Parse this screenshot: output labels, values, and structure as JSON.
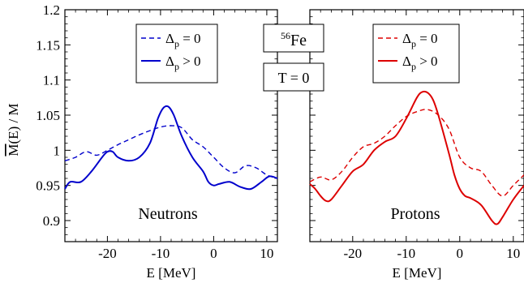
{
  "figure": {
    "y_axis_label_bar": "M",
    "y_axis_label_rest": "(E) / M",
    "center_box_top_sup": "56",
    "center_box_top_main": "Fe",
    "center_box_bottom": "T = 0"
  },
  "chart_data": [
    {
      "type": "line",
      "panel_label": "Neutrons",
      "xlabel": "E [MeV]",
      "ylabel": "M̄(E) / M",
      "xlim": [
        -28,
        12
      ],
      "ylim": [
        0.87,
        1.2
      ],
      "x_ticks": [
        -20,
        -10,
        0,
        10
      ],
      "x_tick_labels": [
        "-20",
        "-10",
        "0",
        "10"
      ],
      "y_ticks": [
        0.9,
        0.95,
        1.0,
        1.05,
        1.1,
        1.15,
        1.2
      ],
      "y_tick_labels": [
        "0.9",
        "0.95",
        "1",
        "1.05",
        "1.1",
        "1.15",
        "1.2"
      ],
      "legend_position": "top-center",
      "series": [
        {
          "name_base": "Δ",
          "name_sub": "p",
          "name_rel": "= 0",
          "color": "#0000cc",
          "dash": "dashed",
          "x": [
            -28,
            -26,
            -24,
            -22,
            -20,
            -18,
            -16,
            -14,
            -12,
            -10,
            -8,
            -6,
            -4,
            -2,
            0,
            2,
            4,
            6,
            8,
            10,
            12
          ],
          "y": [
            0.985,
            0.99,
            0.998,
            0.993,
            1.0,
            1.008,
            1.015,
            1.022,
            1.028,
            1.033,
            1.035,
            1.032,
            1.015,
            1.005,
            0.99,
            0.975,
            0.968,
            0.978,
            0.975,
            0.965,
            0.96
          ]
        },
        {
          "name_base": "Δ",
          "name_sub": "p",
          "name_rel": "> 0",
          "color": "#0000cc",
          "dash": "solid",
          "x": [
            -28,
            -27,
            -25,
            -23,
            -21,
            -20,
            -19,
            -18,
            -16,
            -14,
            -12,
            -10.5,
            -9.5,
            -8.5,
            -7.5,
            -6,
            -4,
            -2,
            -1,
            0,
            1,
            3,
            5,
            7,
            9,
            10.5,
            12
          ],
          "y": [
            0.945,
            0.955,
            0.955,
            0.97,
            0.99,
            0.998,
            0.998,
            0.99,
            0.985,
            0.99,
            1.01,
            1.045,
            1.06,
            1.062,
            1.05,
            1.02,
            0.99,
            0.97,
            0.955,
            0.95,
            0.952,
            0.955,
            0.948,
            0.945,
            0.955,
            0.963,
            0.96
          ]
        }
      ]
    },
    {
      "type": "line",
      "panel_label": "Protons",
      "xlabel": "E [MeV]",
      "xlim": [
        -28,
        12
      ],
      "ylim": [
        0.87,
        1.2
      ],
      "x_ticks": [
        -20,
        -10,
        0,
        10
      ],
      "x_tick_labels": [
        "-20",
        "-10",
        "0",
        "10"
      ],
      "legend_position": "top-center",
      "series": [
        {
          "name_base": "Δ",
          "name_sub": "p",
          "name_rel": "= 0",
          "color": "#dd0000",
          "dash": "dashed",
          "x": [
            -28,
            -26,
            -24,
            -22,
            -20,
            -18,
            -16,
            -14,
            -12,
            -10,
            -8,
            -6,
            -4,
            -2,
            0,
            2,
            4,
            6,
            8,
            10,
            12
          ],
          "y": [
            0.955,
            0.962,
            0.958,
            0.97,
            0.99,
            1.005,
            1.01,
            1.02,
            1.035,
            1.048,
            1.055,
            1.058,
            1.05,
            1.03,
            0.99,
            0.975,
            0.97,
            0.95,
            0.935,
            0.95,
            0.965
          ]
        },
        {
          "name_base": "Δ",
          "name_sub": "p",
          "name_rel": "> 0",
          "color": "#dd0000",
          "dash": "solid",
          "x": [
            -28,
            -27,
            -26,
            -25,
            -24,
            -22,
            -20,
            -18,
            -16,
            -14,
            -12,
            -10,
            -8,
            -7,
            -6,
            -5,
            -4,
            -2,
            -1,
            0,
            1,
            2,
            4,
            6,
            7,
            8,
            10,
            12
          ],
          "y": [
            0.952,
            0.945,
            0.935,
            0.928,
            0.93,
            0.95,
            0.97,
            0.98,
            1.0,
            1.012,
            1.02,
            1.045,
            1.075,
            1.083,
            1.082,
            1.072,
            1.05,
            0.995,
            0.965,
            0.945,
            0.935,
            0.932,
            0.922,
            0.9,
            0.895,
            0.905,
            0.93,
            0.95
          ]
        }
      ]
    }
  ]
}
